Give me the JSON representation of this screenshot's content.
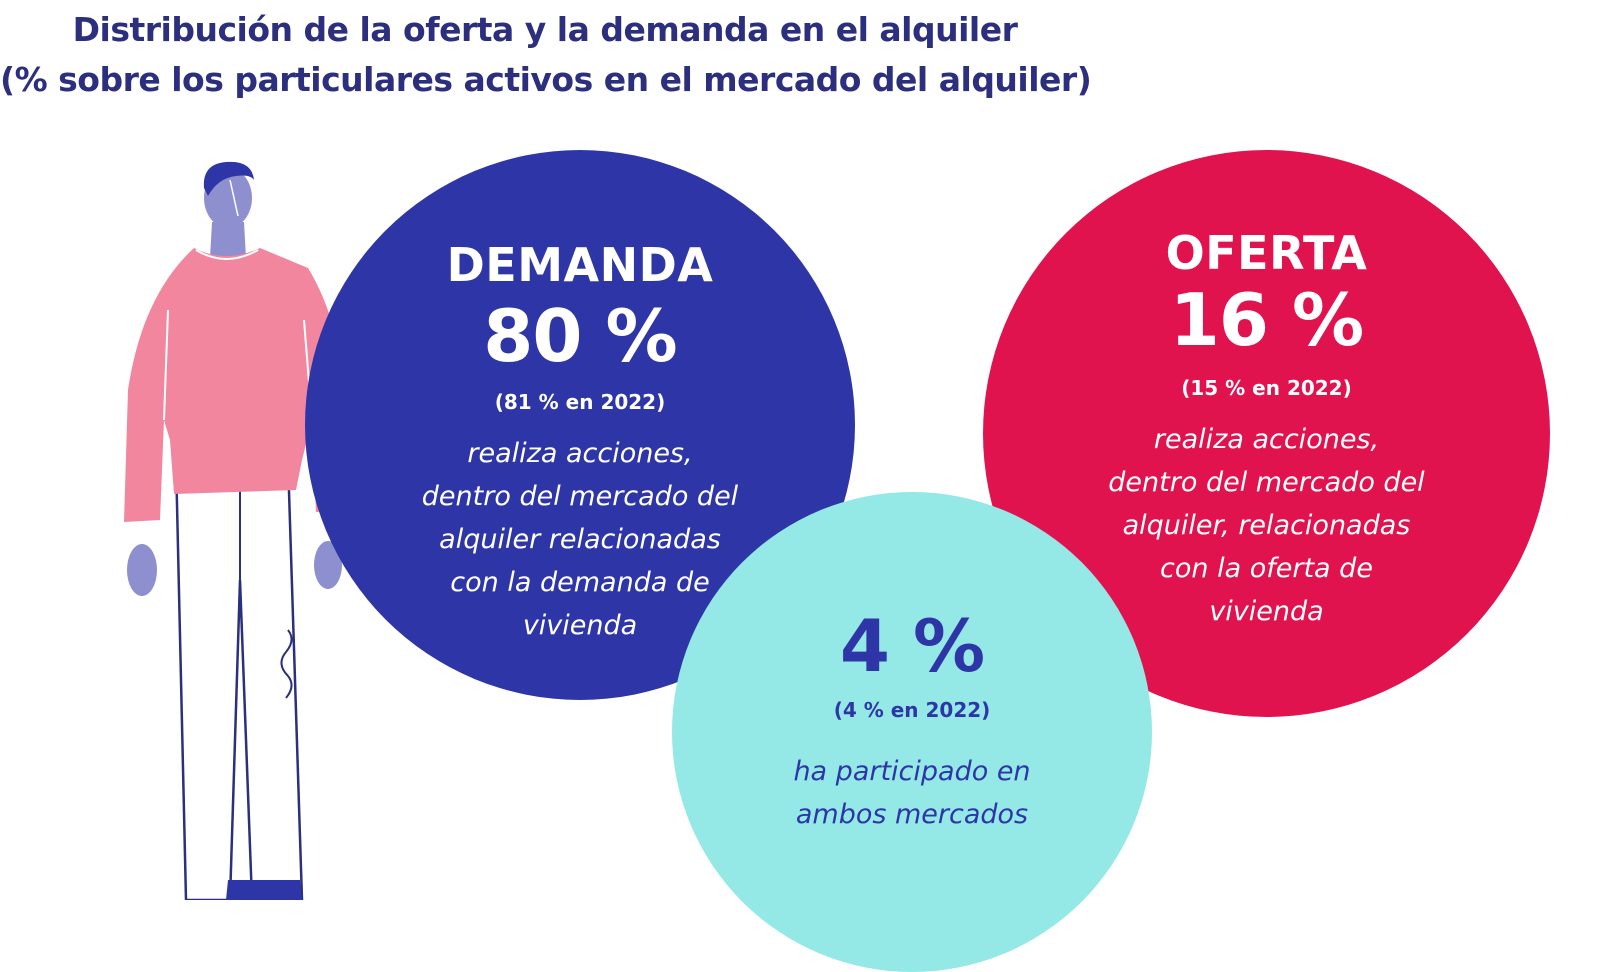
{
  "title": {
    "line1": "Distribución de la oferta y la demanda en el alquiler",
    "line2": "(% sobre los particulares activos en el mercado del alquiler)"
  },
  "demanda": {
    "label": "DEMANDA",
    "value": "80 %",
    "previous": "(81 % en 2022)",
    "description": [
      "realiza acciones,",
      "dentro del mercado del",
      "alquiler relacionadas",
      "con la demanda de",
      "vivienda"
    ]
  },
  "oferta": {
    "label": "OFERTA",
    "value": "16 %",
    "previous": "(15 % en 2022)",
    "description": [
      "realiza acciones,",
      "dentro del mercado del",
      "alquiler, relacionadas",
      "con la oferta de",
      "vivienda"
    ]
  },
  "ambos": {
    "value": "4 %",
    "previous": "(4 % en 2022)",
    "description": [
      "ha participado en",
      "ambos mercados"
    ]
  },
  "colors": {
    "title": "#2b2f7e",
    "demanda": "#2e36a7",
    "oferta": "#e1134f",
    "ambos": "#94e9e6",
    "sweater": "#f2869f",
    "skin": "#8e8fcf"
  }
}
